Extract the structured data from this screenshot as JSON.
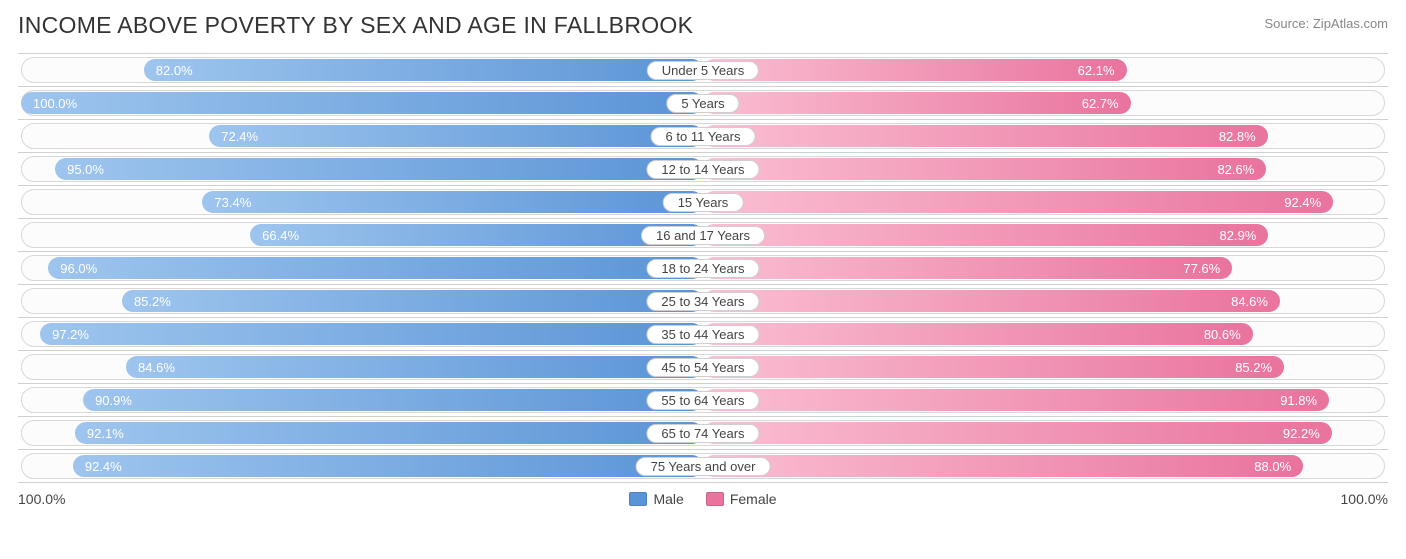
{
  "title": "INCOME ABOVE POVERTY BY SEX AND AGE IN FALLBROOK",
  "source": "Source: ZipAtlas.com",
  "axis_left": "100.0%",
  "axis_right": "100.0%",
  "legend": {
    "male": "Male",
    "female": "Female"
  },
  "colors": {
    "male_start": "#9ec5ee",
    "male_end": "#5a94d6",
    "female_start": "#fabfd2",
    "female_end": "#e9739e",
    "track_border": "#d8d8d8",
    "grid": "#d0d0d0",
    "title": "#333333",
    "source": "#888888",
    "label_text": "#444444",
    "bar_text": "#ffffff"
  },
  "chart": {
    "type": "diverging-bar",
    "max": 100.0,
    "rows": [
      {
        "category": "Under 5 Years",
        "male": 82.0,
        "female": 62.1
      },
      {
        "category": "5 Years",
        "male": 100.0,
        "female": 62.7
      },
      {
        "category": "6 to 11 Years",
        "male": 72.4,
        "female": 82.8
      },
      {
        "category": "12 to 14 Years",
        "male": 95.0,
        "female": 82.6
      },
      {
        "category": "15 Years",
        "male": 73.4,
        "female": 92.4
      },
      {
        "category": "16 and 17 Years",
        "male": 66.4,
        "female": 82.9
      },
      {
        "category": "18 to 24 Years",
        "male": 96.0,
        "female": 77.6
      },
      {
        "category": "25 to 34 Years",
        "male": 85.2,
        "female": 84.6
      },
      {
        "category": "35 to 44 Years",
        "male": 97.2,
        "female": 80.6
      },
      {
        "category": "45 to 54 Years",
        "male": 84.6,
        "female": 85.2
      },
      {
        "category": "55 to 64 Years",
        "male": 90.9,
        "female": 91.8
      },
      {
        "category": "65 to 74 Years",
        "male": 92.1,
        "female": 92.2
      },
      {
        "category": "75 Years and over",
        "male": 92.4,
        "female": 88.0
      }
    ]
  }
}
